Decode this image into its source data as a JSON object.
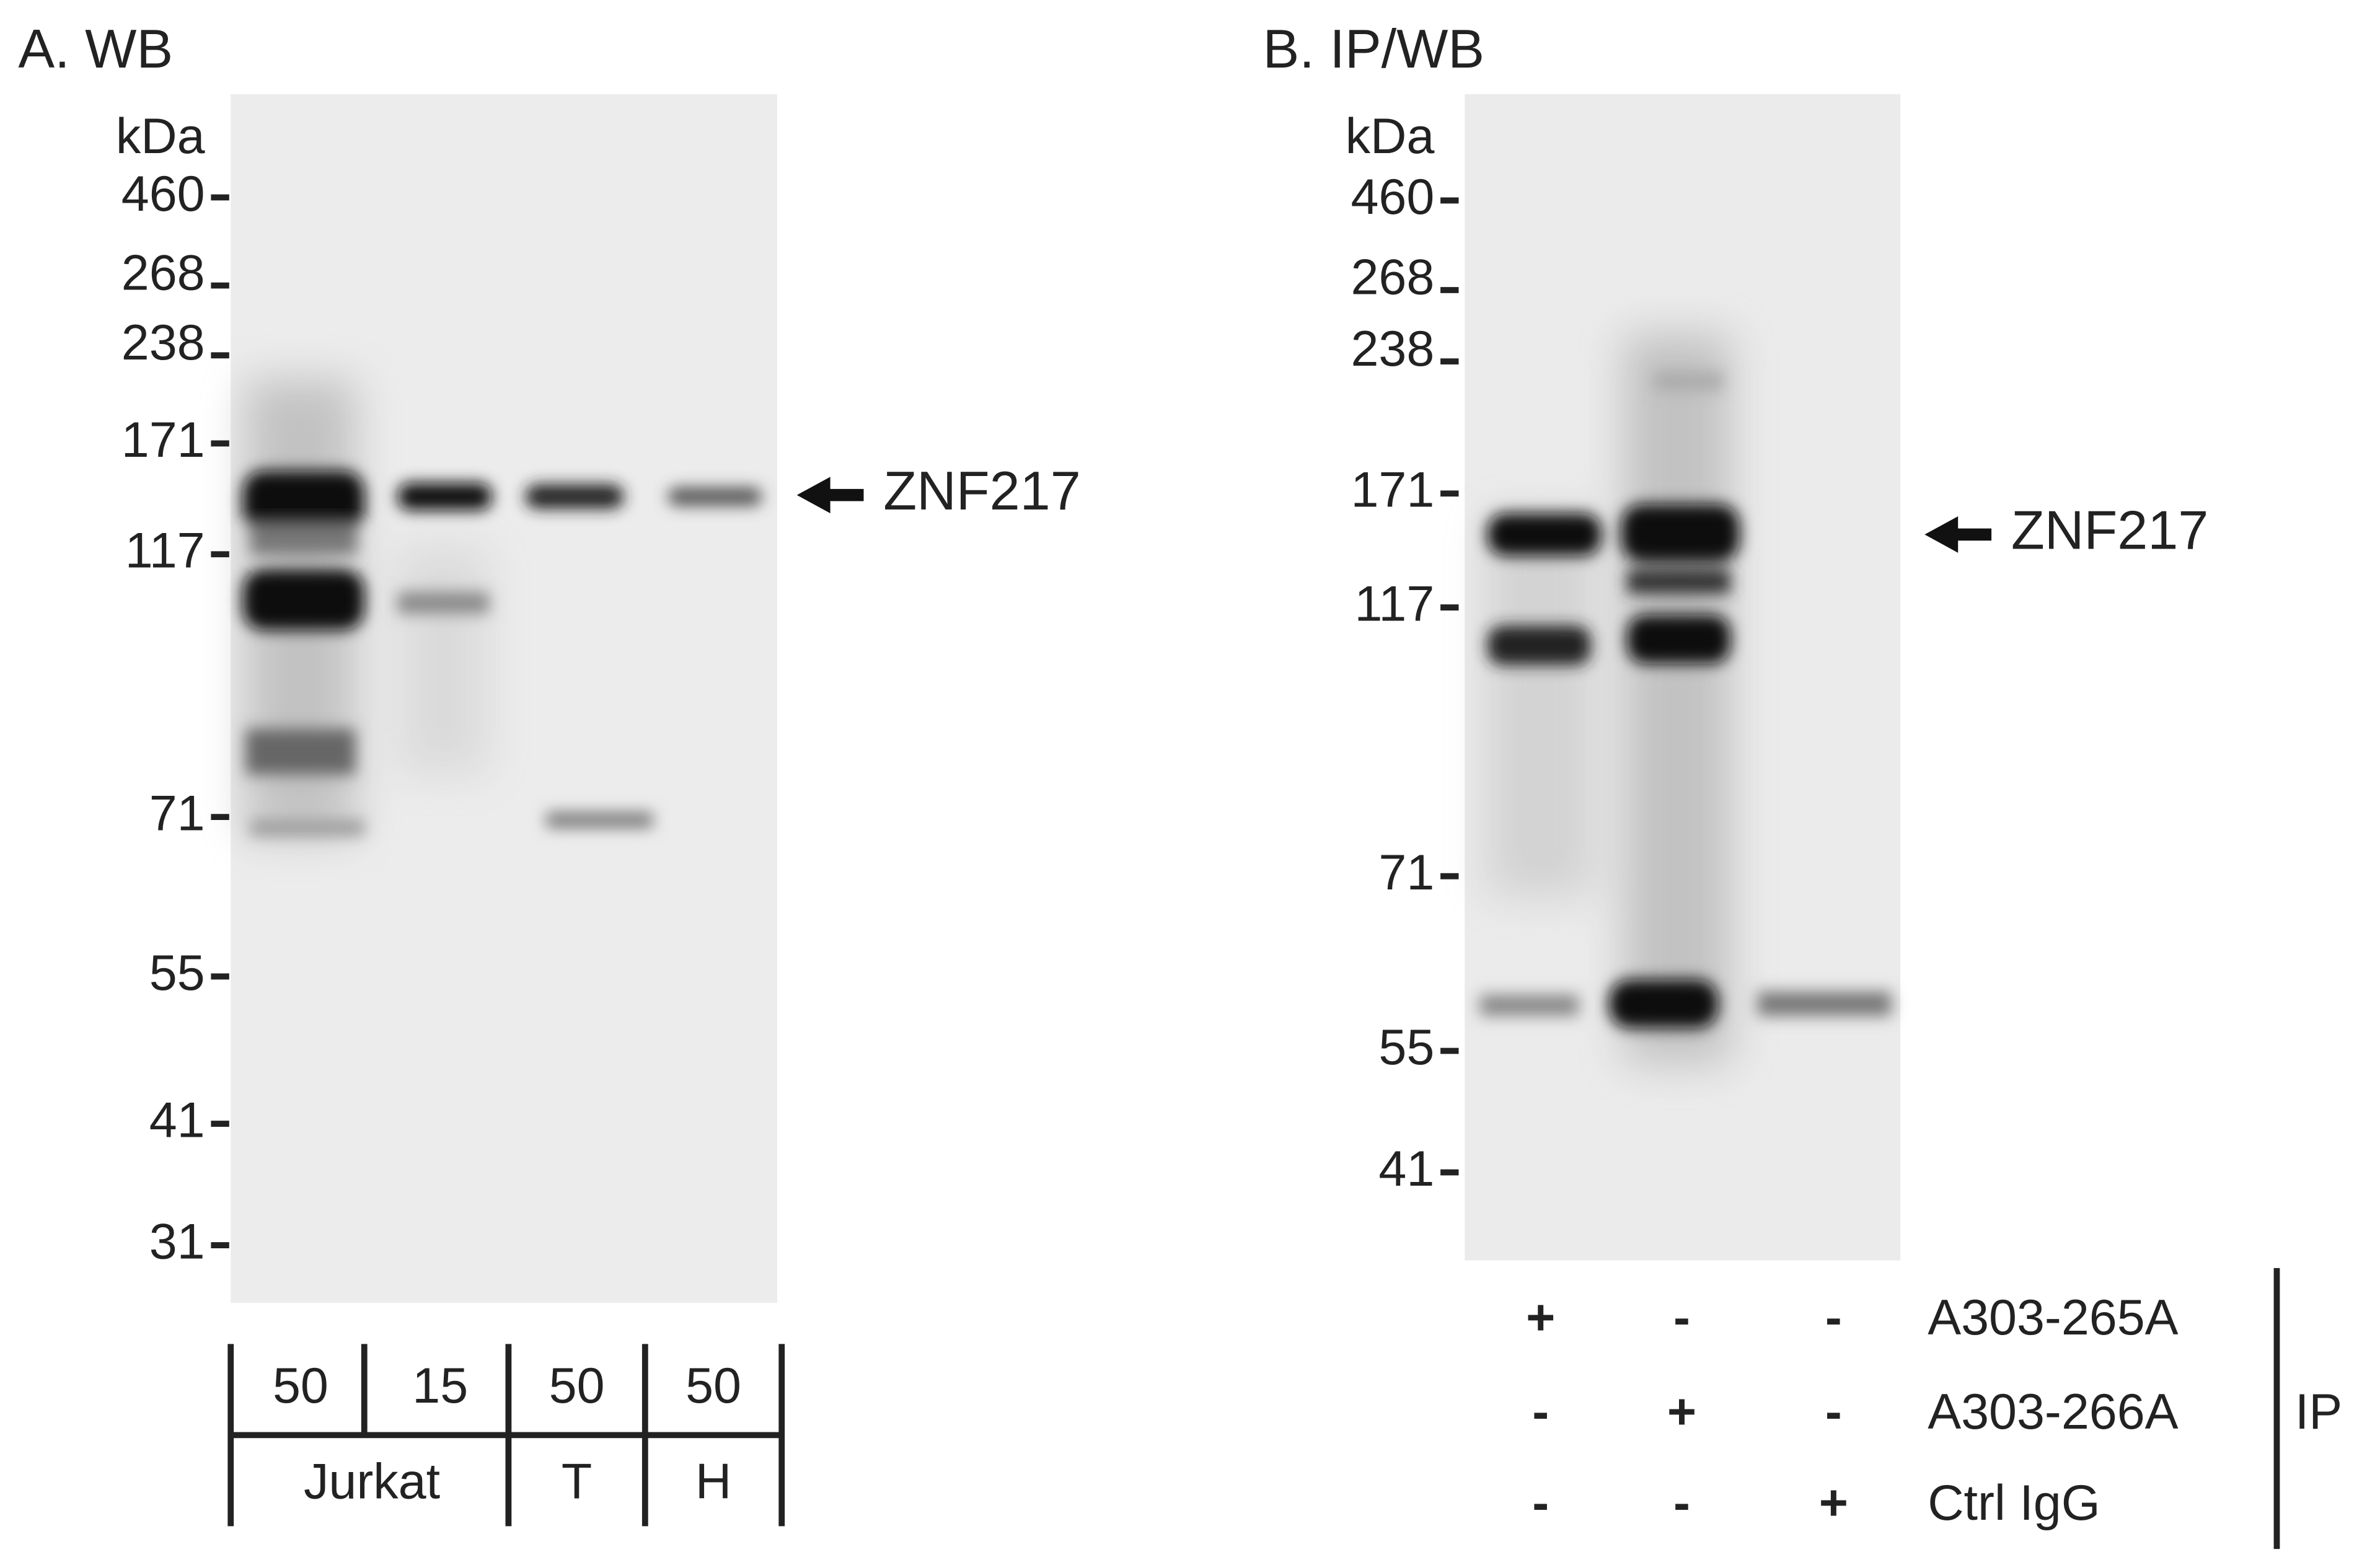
{
  "panels": [
    {
      "label": "A. WB",
      "unit": "kDa",
      "markers": [
        "460",
        "268",
        "238",
        "171",
        "117",
        "71",
        "55",
        "41",
        "31"
      ],
      "target": "ZNF217",
      "lanes": [
        "50",
        "15",
        "50",
        "50"
      ],
      "samples": [
        "Jurkat",
        "T",
        "H"
      ]
    },
    {
      "label": "B. IP/WB",
      "unit": "kDa",
      "markers": [
        "460",
        "268",
        "238",
        "171",
        "117",
        "71",
        "55",
        "41"
      ],
      "target": "ZNF217",
      "rows": [
        {
          "label": "A303-265A",
          "signs": [
            "+",
            "-",
            "-"
          ]
        },
        {
          "label": "A303-266A",
          "signs": [
            "-",
            "+",
            "-"
          ]
        },
        {
          "label": "Ctrl IgG",
          "signs": [
            "-",
            "-",
            "+"
          ]
        }
      ],
      "group": "IP"
    }
  ]
}
